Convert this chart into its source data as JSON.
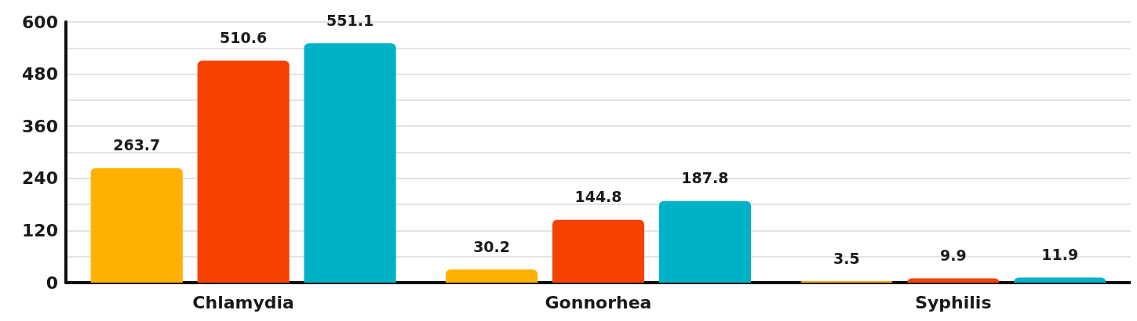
{
  "chart_data": {
    "type": "bar",
    "categories": [
      "Chlamydia",
      "Gonnorhea",
      "Syphilis"
    ],
    "series": [
      {
        "color": "#ffb000",
        "values": [
          263.7,
          30.2,
          3.5
        ]
      },
      {
        "color": "#f54200",
        "values": [
          510.6,
          144.8,
          9.9
        ]
      },
      {
        "color": "#00b2c8",
        "values": [
          551.1,
          187.8,
          11.9
        ]
      }
    ],
    "ylim": [
      0,
      600
    ],
    "yticks": [
      0,
      {
        "value": 60,
        "label": null
      },
      120,
      {
        "value": 180,
        "label": null
      },
      240,
      {
        "value": 300,
        "label": null
      },
      360,
      {
        "value": 420,
        "label": null
      },
      480,
      {
        "value": 540,
        "label": null
      },
      600
    ],
    "grid": "y",
    "data_labels": true
  }
}
